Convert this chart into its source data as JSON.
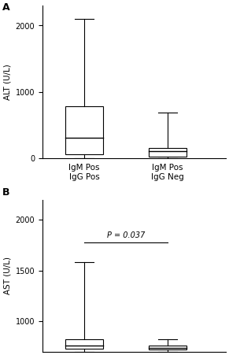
{
  "panel_A": {
    "ylabel": "ALT (U/L)",
    "ylim": [
      0,
      2300
    ],
    "yticks": [
      0,
      1000,
      2000
    ],
    "groups": [
      "IgM Pos\nIgG Pos",
      "IgM Pos\nIgG Neg"
    ],
    "box1": {
      "whisker_low": 0,
      "q1": 50,
      "median": 300,
      "q3": 780,
      "whisker_high": 2100
    },
    "box2": {
      "whisker_low": 0,
      "q1": 15,
      "median": 100,
      "q3": 150,
      "whisker_high": 680
    }
  },
  "panel_B": {
    "ylabel": "AST (U/L)",
    "ylim": [
      700,
      2200
    ],
    "yticks": [
      1000,
      1500,
      2000
    ],
    "groups": [
      "IgM Pos\nIgG Pos",
      "IgM Pos\nIgG Neg"
    ],
    "pvalue_text": "P = 0.037",
    "box1": {
      "whisker_low": 700,
      "q1": 730,
      "median": 760,
      "q3": 820,
      "whisker_high": 1580
    },
    "box2": {
      "whisker_low": 700,
      "q1": 720,
      "median": 740,
      "q3": 760,
      "whisker_high": 820
    }
  },
  "box_width": 0.45,
  "box_color": "white",
  "line_color": "black",
  "background_color": "white",
  "fontsize": 7,
  "label_fontsize": 7.5,
  "tick_fontsize": 7,
  "panel_label_fontsize": 9
}
